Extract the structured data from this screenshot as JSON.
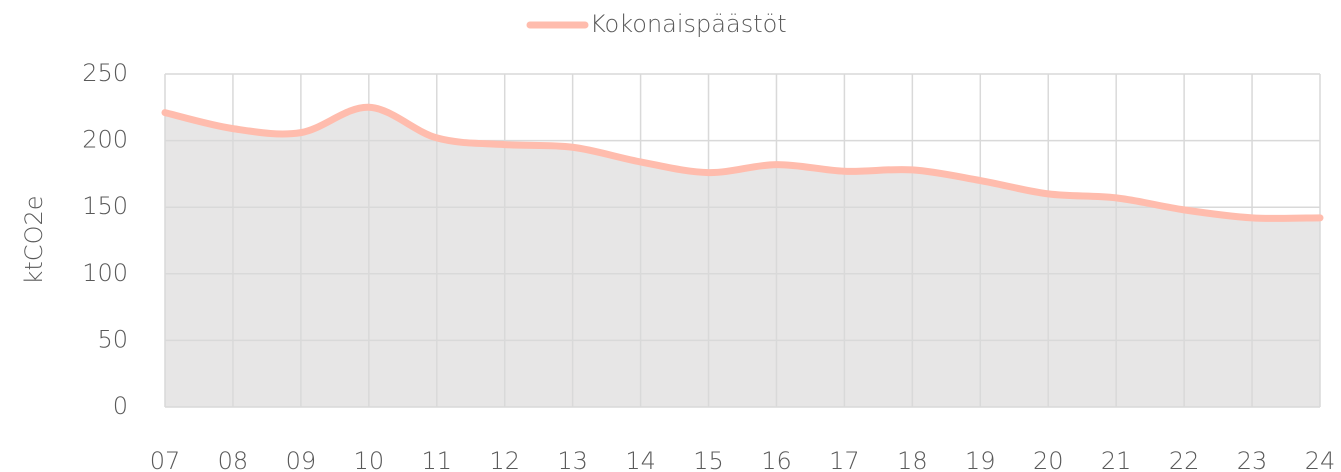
{
  "chart_data": {
    "type": "area",
    "y_label": "ktCO2e",
    "categories": [
      "07",
      "08",
      "09",
      "10",
      "11",
      "12",
      "13",
      "14",
      "15",
      "16",
      "17",
      "18",
      "19",
      "20",
      "21",
      "22",
      "23",
      "24"
    ],
    "series": [
      {
        "name": "Kokonaispäästöt",
        "color": "#ffbcad",
        "area_color": "#e7e6e6",
        "values": [
          221,
          209,
          206,
          225,
          202,
          197,
          195,
          184,
          176,
          182,
          177,
          178,
          170,
          160,
          157,
          148,
          142,
          142
        ]
      }
    ],
    "ylim": [
      0,
      250
    ],
    "yticks": [
      0,
      50,
      100,
      150,
      200,
      250
    ],
    "grid": true,
    "smooth": true,
    "legend": "top"
  }
}
